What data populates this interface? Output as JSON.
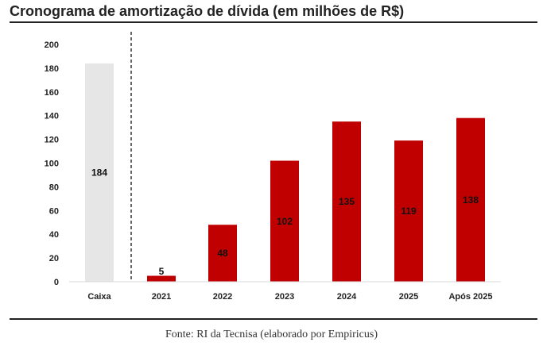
{
  "header": {
    "title": "Cronograma de amortização de dívida (em milhões de R$)"
  },
  "footer": {
    "source": "Fonte: RI da Tecnisa (elaborado por Empiricus)"
  },
  "colors": {
    "cash_bar": "#e6e6e6",
    "debt_bar": "#c00000",
    "text": "#222222"
  },
  "chart_data": {
    "type": "bar",
    "title": "Cronograma de amortização de dívida (em milhões de R$)",
    "categories": [
      "Caixa",
      "2021",
      "2022",
      "2023",
      "2024",
      "2025",
      "Após 2025"
    ],
    "values": [
      184,
      5,
      48,
      102,
      135,
      119,
      138
    ],
    "data_labels": [
      "184",
      "5",
      "48",
      "102",
      "135",
      "119",
      "138"
    ],
    "yticks": [
      "0",
      "20",
      "40",
      "60",
      "80",
      "100",
      "120",
      "140",
      "160",
      "180",
      "200"
    ],
    "ylim": [
      0,
      200
    ],
    "xlabel": "",
    "ylabel": "",
    "grid": false,
    "legend": "none",
    "separator_after_category": "Caixa"
  }
}
